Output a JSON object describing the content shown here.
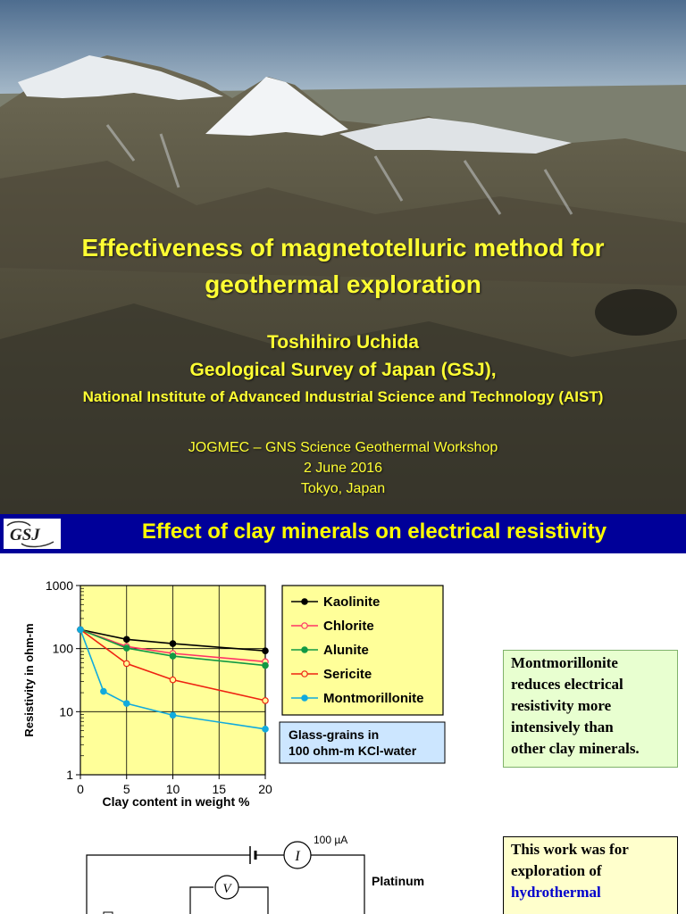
{
  "title_slide": {
    "title_line1": "Effectiveness of magnetotelluric method for",
    "title_line2": "geothermal exploration",
    "author": "Toshihiro Uchida",
    "affiliation1": "Geological Survey of Japan (GSJ),",
    "affiliation2": "National Institute of Advanced Industrial Science and Technology (AIST)",
    "event": "JOGMEC – GNS Science Geothermal Workshop",
    "date": "2 June 2016",
    "location": "Tokyo, Japan"
  },
  "clay_slide": {
    "logo_text": "GSJ",
    "title": "Effect of clay minerals on electrical resistivity",
    "note1_lines": [
      "Montmorillonite",
      "reduces electrical",
      "resistivity more",
      "intensively than",
      "other clay minerals."
    ],
    "note2_lines": [
      "This work was for",
      "exploration of"
    ],
    "note2_highlight": "hydrothermal",
    "circuit": {
      "current_label": "100 µA",
      "current_symbol": "I",
      "voltage_symbol": "V",
      "electrode_label": "Platinum"
    }
  },
  "chart_data": {
    "type": "line",
    "title": "",
    "xlabel": "Clay content in weight %",
    "ylabel": "Resistivity in ohm-m",
    "xlim": [
      0,
      20
    ],
    "ylim": [
      1,
      1000
    ],
    "yscale": "log",
    "x_ticks": [
      "0",
      "5",
      "10",
      "15",
      "20"
    ],
    "y_ticks": [
      "1",
      "10",
      "100",
      "1000"
    ],
    "grid": true,
    "legend_position": "right",
    "annotation": "Glass-grains in\n100 ohm-m KCl-water",
    "series": [
      {
        "name": "Kaolinite",
        "color": "#000000",
        "marker": "filled",
        "x": [
          0,
          5,
          10,
          20
        ],
        "y": [
          200,
          140,
          120,
          92
        ]
      },
      {
        "name": "Chlorite",
        "color": "#ff3366",
        "marker": "open",
        "x": [
          0,
          5,
          10,
          20
        ],
        "y": [
          200,
          108,
          84,
          62
        ]
      },
      {
        "name": "Alunite",
        "color": "#119944",
        "marker": "filled",
        "x": [
          0,
          5,
          10,
          20
        ],
        "y": [
          200,
          102,
          76,
          54
        ]
      },
      {
        "name": "Sericite",
        "color": "#ee2211",
        "marker": "open",
        "x": [
          0,
          5,
          10,
          20
        ],
        "y": [
          200,
          58,
          32,
          15
        ]
      },
      {
        "name": "Montmorillonite",
        "color": "#11aadd",
        "marker": "filled",
        "x": [
          0,
          2.5,
          5,
          10,
          20
        ],
        "y": [
          200,
          21,
          13.5,
          8.8,
          5.3
        ]
      }
    ]
  }
}
